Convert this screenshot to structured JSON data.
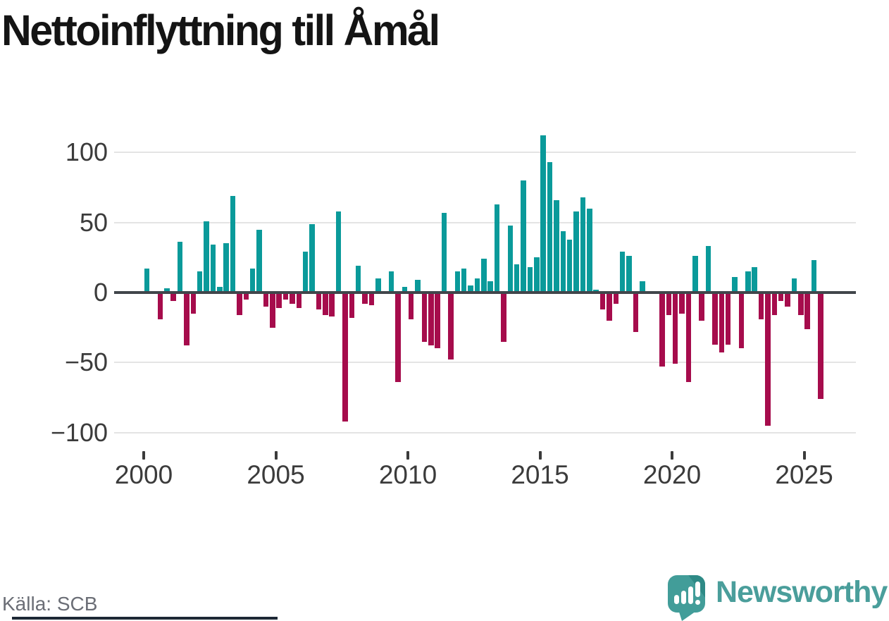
{
  "title": "Nettoinflyttning till Åmål",
  "source": "Källa: SCB",
  "branding": {
    "name": "Newsworthy"
  },
  "colors": {
    "positive": "#0a9a9a",
    "negative": "#a60c4c",
    "grid": "#e4e4e4",
    "zero_line": "#41464b",
    "axis_text": "#3b3b3b",
    "title_text": "#141414",
    "source_text": "#6b6e76",
    "brand": "#4a9e9b",
    "brand_dark": "#2e8a86",
    "footer_bar": "#1d2835"
  },
  "chart_data": {
    "type": "bar",
    "title": "Nettoinflyttning till Åmål",
    "xlabel": "",
    "ylabel": "",
    "first_period": "2000Q1",
    "periods_per_year": 4,
    "values": [
      17,
      0,
      -19,
      3,
      -6,
      36,
      -38,
      -15,
      15,
      51,
      34,
      4,
      35,
      69,
      -16,
      -5,
      17,
      45,
      -10,
      -25,
      -11,
      -5,
      -8,
      -11,
      29,
      49,
      -12,
      -16,
      -17,
      58,
      -92,
      -18,
      19,
      -8,
      -9,
      10,
      0,
      15,
      -64,
      4,
      -19,
      9,
      -35,
      -38,
      -40,
      57,
      -48,
      15,
      17,
      5,
      10,
      24,
      8,
      63,
      -35,
      48,
      20,
      80,
      18,
      25,
      112,
      93,
      66,
      44,
      38,
      58,
      68,
      60,
      2,
      -12,
      -20,
      -8,
      29,
      26,
      -28,
      8,
      0,
      0,
      -53,
      -16,
      -51,
      -15,
      -64,
      26,
      -20,
      33,
      -37,
      -43,
      -37,
      11,
      -40,
      15,
      18,
      -19,
      -95,
      -16,
      -6,
      -10,
      10,
      -16,
      -26,
      23,
      -76
    ],
    "ylim": [
      -115,
      125
    ],
    "yticks": [
      100,
      50,
      0,
      -50,
      -100
    ],
    "ytick_labels": [
      "100",
      "50",
      "0",
      "−50",
      "−100"
    ],
    "xtick_labels": [
      "2000",
      "2005",
      "2010",
      "2015",
      "2020",
      "2025"
    ],
    "grid": true,
    "legend": "none",
    "series_colors_rule": "positive teal, negative maroon"
  }
}
